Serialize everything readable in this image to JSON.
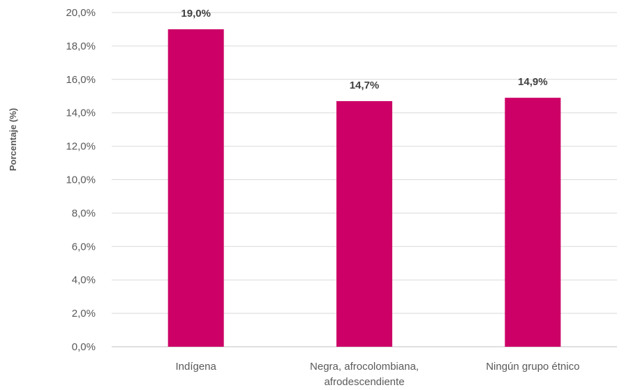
{
  "chart_data": {
    "type": "bar",
    "title": "",
    "xlabel": "",
    "ylabel": "Porcentaje (%)",
    "categories": [
      [
        "Indígena"
      ],
      [
        "Negra, afrocolombiana,",
        "afrodescendiente"
      ],
      [
        "Ningún grupo étnico"
      ]
    ],
    "values": [
      19.0,
      14.7,
      14.9
    ],
    "data_labels": [
      "19,0%",
      "14,7%",
      "14,9%"
    ],
    "ylim": [
      0,
      20
    ],
    "yticks": [
      0,
      2,
      4,
      6,
      8,
      10,
      12,
      14,
      16,
      18,
      20
    ],
    "ytick_labels": [
      "0,0%",
      "2,0%",
      "4,0%",
      "6,0%",
      "8,0%",
      "10,0%",
      "12,0%",
      "14,0%",
      "16,0%",
      "18,0%",
      "20,0%"
    ],
    "grid": true,
    "legend": "none",
    "bar_color": "#CC0066"
  }
}
